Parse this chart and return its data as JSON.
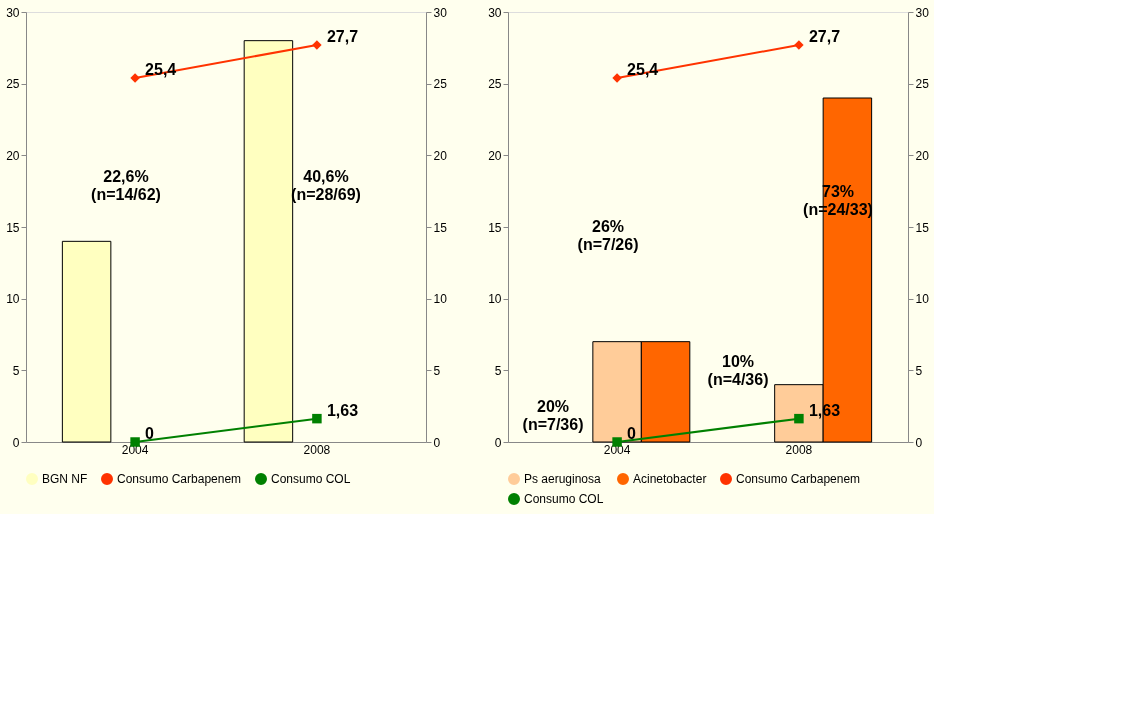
{
  "chart_data": [
    {
      "type": "bar",
      "categories": [
        "2004",
        "2008"
      ],
      "series": [
        {
          "name": "BGN NF",
          "color": "#ffffc0",
          "values": [
            14,
            28
          ]
        },
        {
          "name": "Consumo Carbapenem",
          "color": "#ff3300",
          "type": "line",
          "axis": "y2",
          "marker": "diamond",
          "values": [
            25.4,
            27.7
          ],
          "value_labels": [
            "25,4",
            "27,7"
          ]
        },
        {
          "name": "Consumo COL",
          "color": "#008000",
          "type": "line",
          "axis": "y2",
          "marker": "square",
          "values": [
            0,
            1.63
          ],
          "value_labels": [
            "0",
            "1,63"
          ]
        }
      ],
      "ylim": [
        0,
        30
      ],
      "yticks": [
        0,
        5,
        10,
        15,
        20,
        25,
        30
      ],
      "y2lim": [
        0,
        30
      ],
      "y2ticks": [
        0,
        5,
        10,
        15,
        20,
        25,
        30
      ],
      "grid": false,
      "legend": "bottom",
      "annotations": [
        "22,6% (n=14/62)",
        "40,6% (n=28/69)"
      ]
    },
    {
      "type": "bar",
      "categories": [
        "2004",
        "2008"
      ],
      "series": [
        {
          "name": "Ps aeruginosa",
          "color": "#ffcc99",
          "values": [
            7,
            4
          ]
        },
        {
          "name": "Acinetobacter",
          "color": "#ff6600",
          "values": [
            7,
            24
          ]
        },
        {
          "name": "Consumo Carbapenem",
          "color": "#ff3300",
          "type": "line",
          "axis": "y2",
          "marker": "diamond",
          "values": [
            25.4,
            27.7
          ],
          "value_labels": [
            "25,4",
            "27,7"
          ]
        },
        {
          "name": "Consumo COL",
          "color": "#008000",
          "type": "line",
          "axis": "y2",
          "marker": "square",
          "values": [
            0,
            1.63
          ],
          "value_labels": [
            "0",
            "1,63"
          ]
        }
      ],
      "ylim": [
        0,
        30
      ],
      "yticks": [
        0,
        5,
        10,
        15,
        20,
        25,
        30
      ],
      "y2lim": [
        0,
        30
      ],
      "y2ticks": [
        0,
        5,
        10,
        15,
        20,
        25,
        30
      ],
      "grid": false,
      "legend": "bottom",
      "annotations": [
        "20% (n=7/36)",
        "26% (n=7/26)",
        "10% (n=4/36)",
        "73% (n=24/33)"
      ]
    }
  ]
}
